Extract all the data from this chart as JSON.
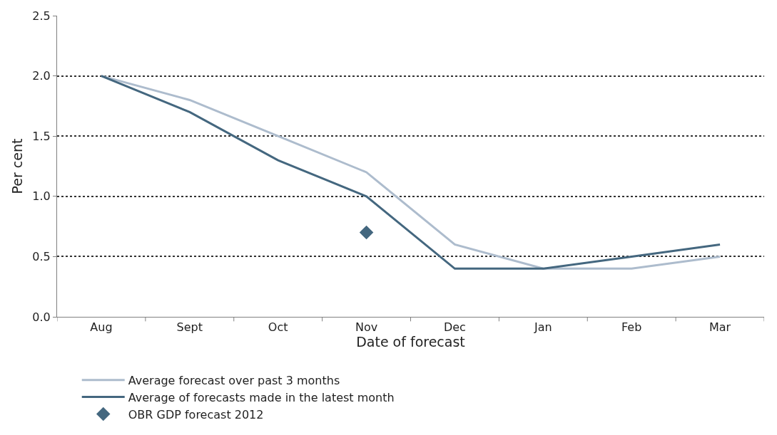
{
  "chart_data": {
    "type": "line",
    "xlabel": "Date of forecast",
    "ylabel": "Per cent",
    "categories": [
      "Aug",
      "Sept",
      "Oct",
      "Nov",
      "Dec",
      "Jan",
      "Feb",
      "Mar"
    ],
    "series": [
      {
        "name": "Average forecast over past 3 months",
        "color": "#adbccd",
        "values": [
          2.0,
          1.8,
          1.5,
          1.2,
          0.6,
          0.4,
          0.4,
          0.5
        ],
        "marker": "none"
      },
      {
        "name": "Average of forecasts made in the latest month",
        "color": "#44677f",
        "values": [
          2.0,
          1.7,
          1.3,
          1.0,
          0.4,
          0.4,
          0.5,
          0.6
        ],
        "marker": "none"
      },
      {
        "name": "OBR GDP forecast 2012",
        "type": "scatter",
        "color": "#44677f",
        "x": [
          "Nov"
        ],
        "values": [
          0.7
        ],
        "marker": "diamond"
      }
    ],
    "ylim": [
      0,
      2.5
    ],
    "yticks": [
      {
        "value": 0,
        "label": "0.0"
      },
      {
        "value": 0.5,
        "label": "0.5"
      },
      {
        "value": 1,
        "label": "1.0"
      },
      {
        "value": 1.5,
        "label": "1.5"
      },
      {
        "value": 2,
        "label": "2.0"
      },
      {
        "value": 2.5,
        "label": "2.5"
      }
    ],
    "grid": "y",
    "legend": "bottom",
    "line_style": "solid"
  }
}
